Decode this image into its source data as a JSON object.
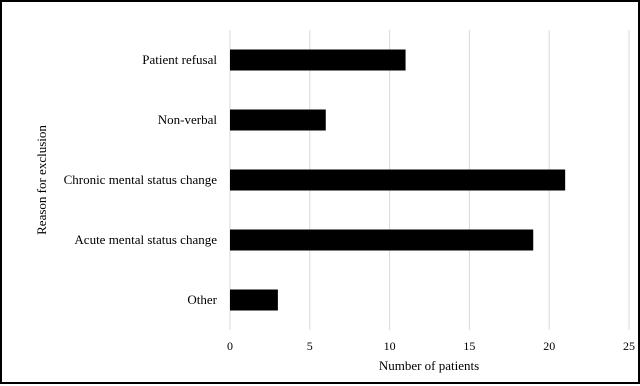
{
  "chart_data": {
    "type": "bar",
    "orientation": "horizontal",
    "categories": [
      "Patient refusal",
      "Non-verbal",
      "Chronic mental status change",
      "Acute mental status change",
      "Other"
    ],
    "series": [
      {
        "values": [
          11,
          6,
          21,
          19,
          3
        ]
      }
    ],
    "xlabel": "Number of patients",
    "ylabel": "Reason for exclusion",
    "xlim": [
      0,
      25
    ],
    "xticks": [
      "0",
      "5",
      "10",
      "15",
      "20",
      "25"
    ],
    "grid": "vertical",
    "bar_color": "#000000",
    "grid_color": "#d9d9d9"
  }
}
